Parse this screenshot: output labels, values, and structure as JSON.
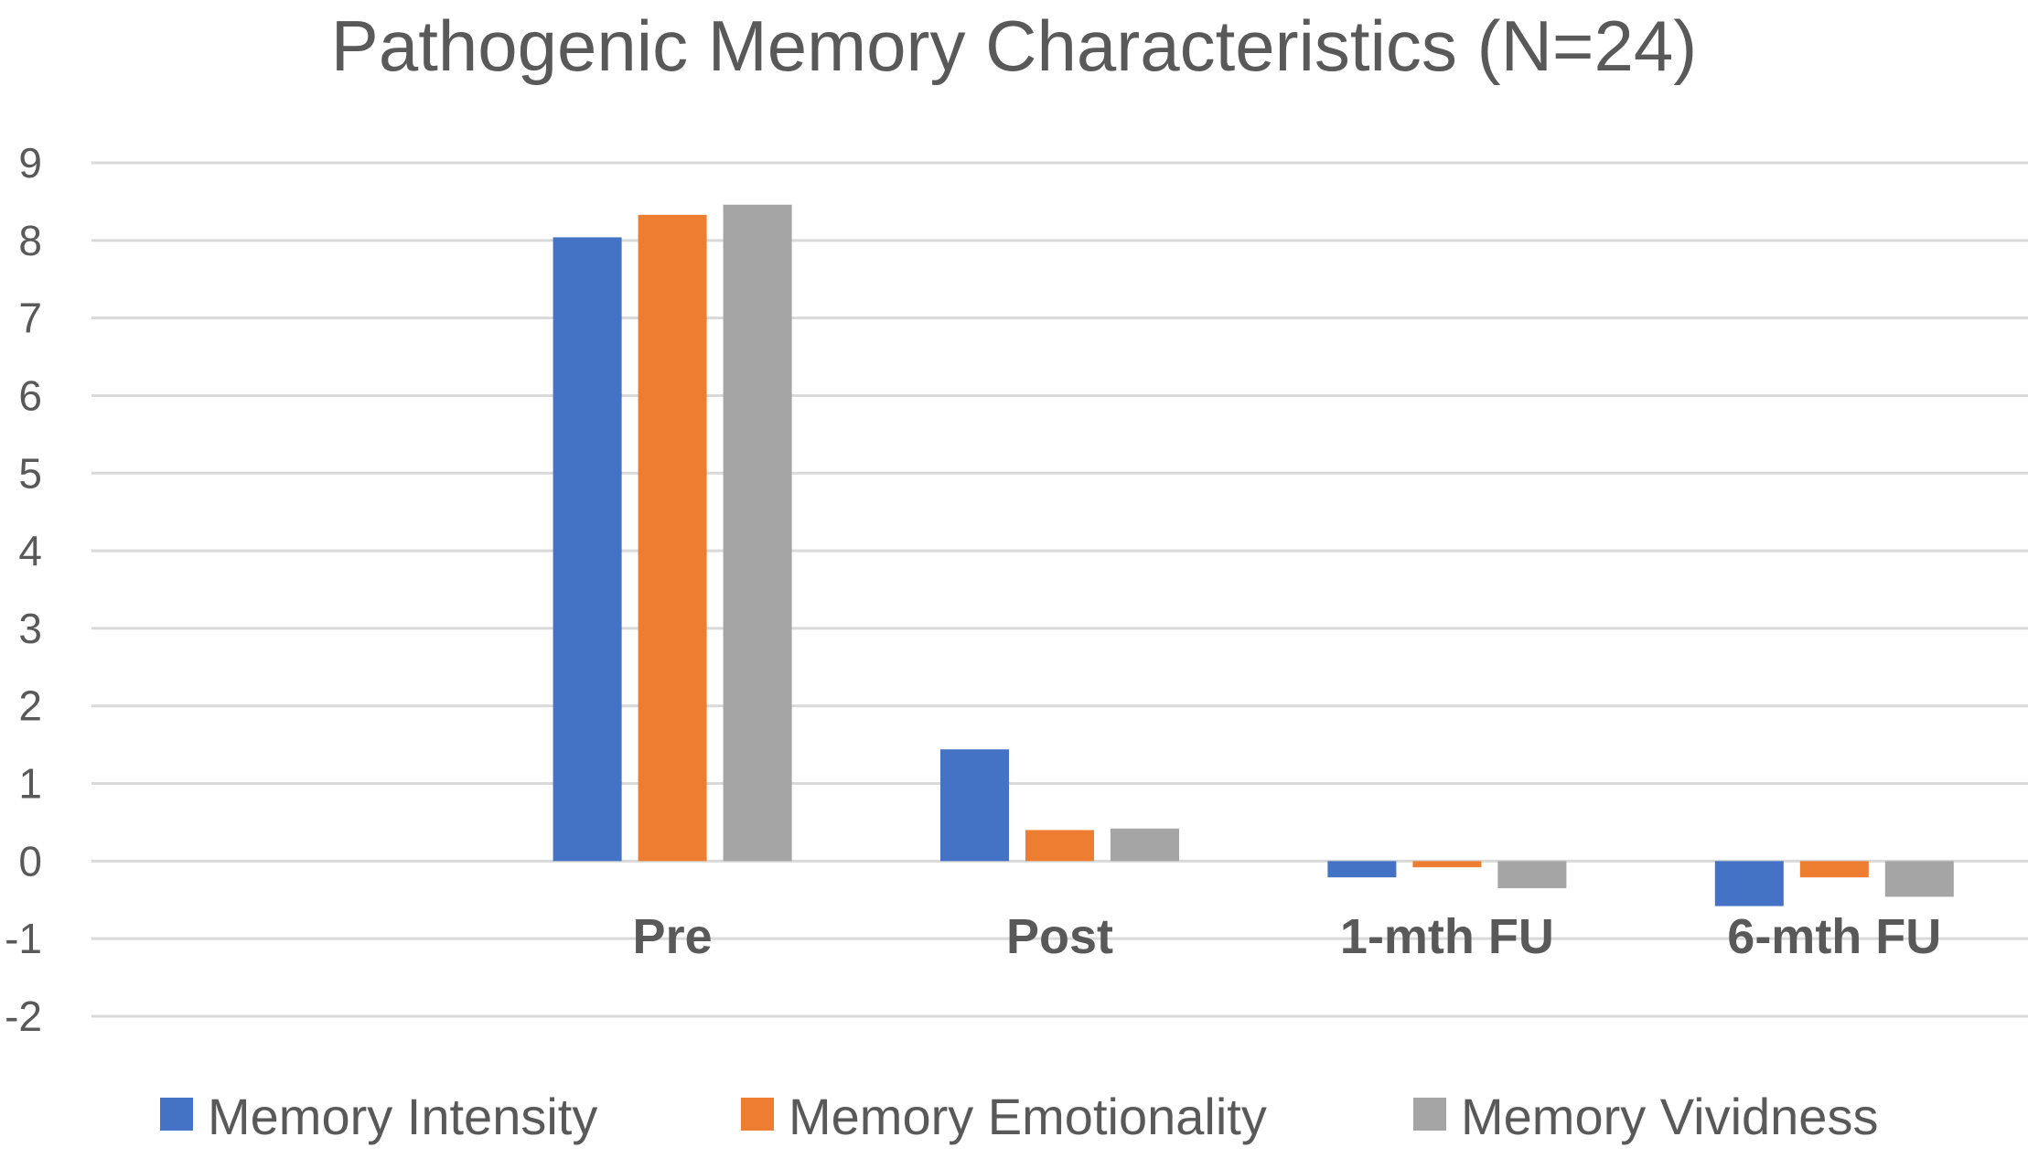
{
  "chart_data": {
    "type": "bar",
    "title": "Pathogenic Memory Characteristics (N=24)",
    "xlabel": "",
    "ylabel": "",
    "categories": [
      "",
      "Pre",
      "Post",
      "1-mth FU",
      "6-mth FU"
    ],
    "series": [
      {
        "name": "Memory Intensity",
        "color": "#4472C4",
        "values": [
          null,
          8.04,
          1.44,
          -0.21,
          -0.58
        ]
      },
      {
        "name": "Memory Emotionality",
        "color": "#ED7D31",
        "values": [
          null,
          8.33,
          0.4,
          -0.08,
          -0.21
        ]
      },
      {
        "name": "Memory Vividness",
        "color": "#A5A5A5",
        "values": [
          null,
          8.46,
          0.42,
          -0.35,
          -0.46
        ]
      }
    ],
    "ylim": [
      -2,
      9
    ],
    "yticks": [
      -2,
      -1,
      0,
      1,
      2,
      3,
      4,
      5,
      6,
      7,
      8,
      9
    ],
    "grid": true,
    "legend_position": "bottom"
  }
}
